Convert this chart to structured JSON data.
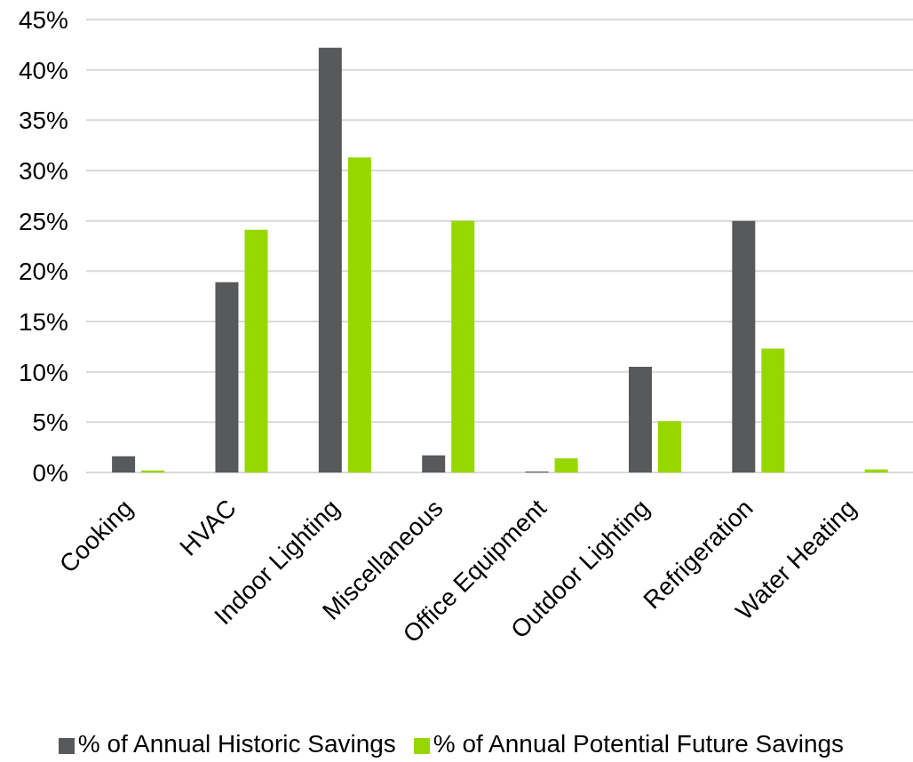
{
  "chart_data": {
    "type": "bar",
    "categories": [
      "Cooking",
      "HVAC",
      "Indoor Lighting",
      "Miscellaneous",
      "Office Equipment",
      "Outdoor Lighting",
      "Refrigeration",
      "Water Heating"
    ],
    "series": [
      {
        "name": "% of Annual Historic Savings",
        "color": "#58595b",
        "values": [
          1.6,
          18.9,
          42.2,
          1.7,
          0.1,
          10.5,
          25.0,
          0
        ]
      },
      {
        "name": "% of Annual Potential Future Savings",
        "color": "#97d700",
        "values": [
          0.2,
          24.1,
          31.3,
          25.0,
          1.4,
          5.1,
          12.3,
          0.3
        ]
      }
    ],
    "ylim": [
      0,
      45
    ],
    "yticks": [
      {
        "value": 0,
        "label": "0%"
      },
      {
        "value": 5,
        "label": "5%"
      },
      {
        "value": 10,
        "label": "10%"
      },
      {
        "value": 15,
        "label": "15%"
      },
      {
        "value": 20,
        "label": "20%"
      },
      {
        "value": 25,
        "label": "25%"
      },
      {
        "value": 30,
        "label": "30%"
      },
      {
        "value": 35,
        "label": "35%"
      },
      {
        "value": 40,
        "label": "40%"
      },
      {
        "value": 45,
        "label": "45%"
      }
    ],
    "grid": "y",
    "legend": "bottom"
  }
}
